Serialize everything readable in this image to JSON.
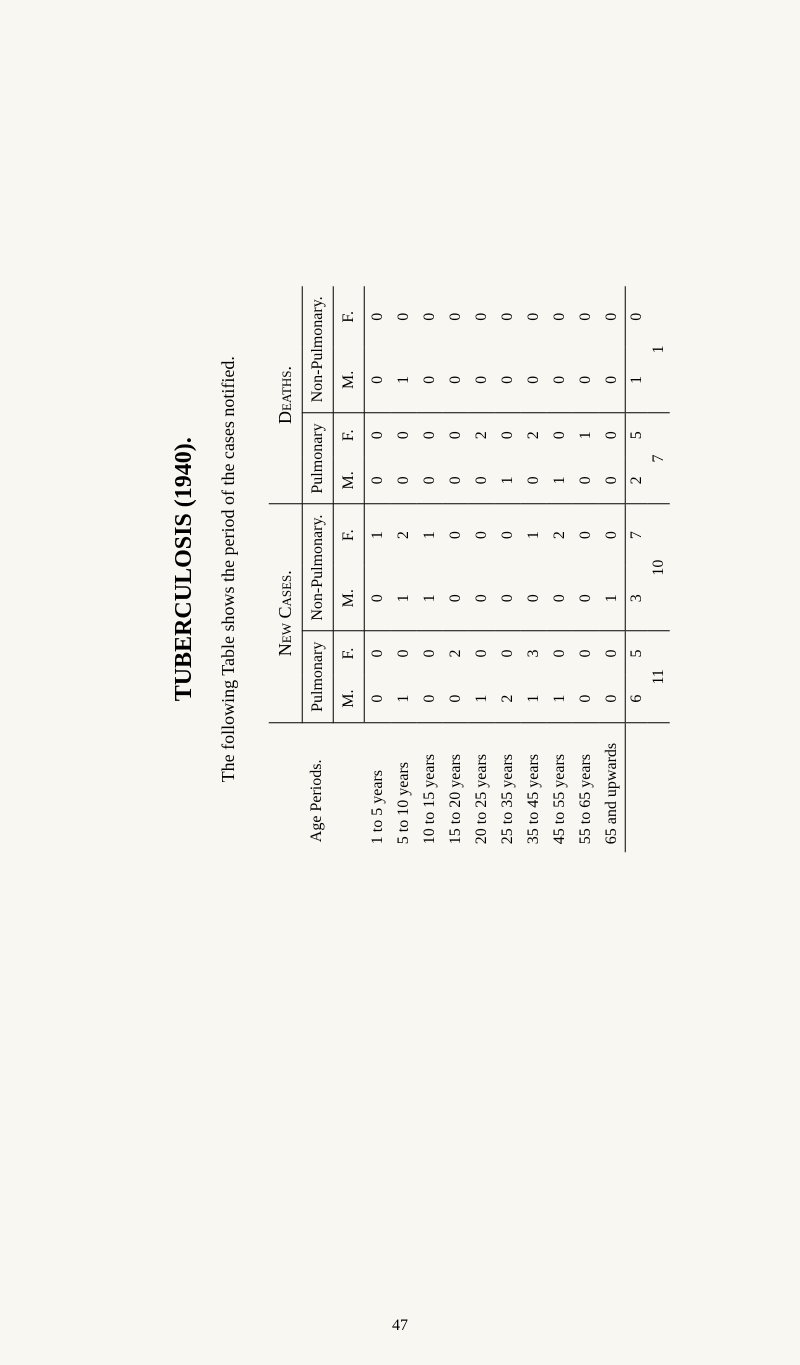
{
  "title": "TUBERCULOSIS (1940).",
  "subtitle": "The following Table shows the period of the cases notified.",
  "page_number": "47",
  "column_headers": {
    "age": "Age Periods.",
    "new_cases": "New Cases.",
    "deaths": "Deaths.",
    "pulmonary": "Pulmonary",
    "non_pulmonary": "Non-Pulmonary.",
    "m": "M.",
    "f": "F."
  },
  "age_periods": [
    "1 to 5 years",
    "5 to 10 years",
    "10 to 15 years",
    "15 to 20 years",
    "20 to 25 years",
    "25 to 35 years",
    "35 to 45 years",
    "45 to 55 years",
    "55 to 65 years",
    "65 and upwards"
  ],
  "new_cases": {
    "pulmonary": {
      "m": [
        0,
        1,
        0,
        0,
        1,
        2,
        1,
        1,
        0,
        0
      ],
      "f": [
        0,
        0,
        0,
        2,
        0,
        0,
        3,
        0,
        0,
        0
      ]
    },
    "non_pulmonary": {
      "m": [
        0,
        1,
        1,
        0,
        0,
        0,
        0,
        0,
        0,
        1
      ],
      "f": [
        1,
        2,
        1,
        0,
        0,
        0,
        1,
        2,
        0,
        0
      ]
    }
  },
  "deaths": {
    "pulmonary": {
      "m": [
        0,
        0,
        0,
        0,
        0,
        1,
        0,
        1,
        0,
        0
      ],
      "f": [
        0,
        0,
        0,
        0,
        2,
        0,
        2,
        0,
        1,
        0
      ]
    },
    "non_pulmonary": {
      "m": [
        0,
        1,
        0,
        0,
        0,
        0,
        0,
        0,
        0,
        0
      ],
      "f": [
        0,
        0,
        0,
        0,
        0,
        0,
        0,
        0,
        0,
        0
      ]
    }
  },
  "totals": {
    "new_cases": {
      "pulmonary": {
        "m": 6,
        "f": 5
      },
      "non_pulmonary": {
        "m": 3,
        "f": 7
      }
    },
    "deaths": {
      "pulmonary": {
        "m": 2,
        "f": 5
      },
      "non_pulmonary": {
        "m": 1,
        "f": 0
      }
    }
  },
  "grand_totals": {
    "new_cases": {
      "pulmonary": 11,
      "non_pulmonary": 10
    },
    "deaths": {
      "pulmonary": 7,
      "non_pulmonary": 1
    }
  },
  "style": {
    "background_color": "#f8f7f2",
    "text_color": "#000000",
    "font_family": "Times New Roman",
    "title_fontsize": 24,
    "body_fontsize": 16,
    "rotation": -90
  }
}
